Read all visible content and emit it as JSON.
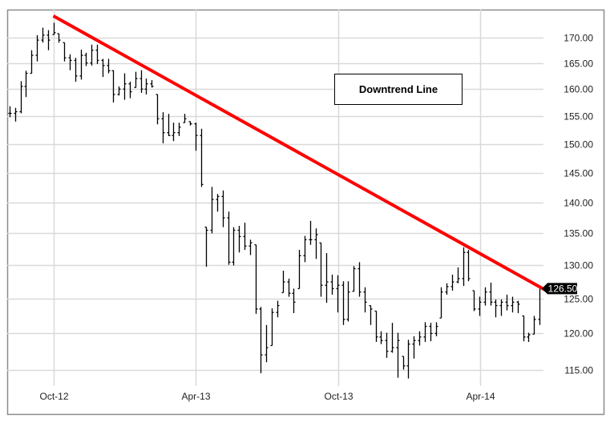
{
  "chart_data": {
    "type": "ohlc-bar",
    "title": "",
    "xlabel": "",
    "ylabel": "",
    "y_scale": "log",
    "ylim": [
      112.8,
      175.7
    ],
    "xlim": [
      "2012-08-06",
      "2014-06-16"
    ],
    "grid": true,
    "y_ticks": [
      "115.00",
      "120.00",
      "125.00",
      "130.00",
      "135.00",
      "140.00",
      "145.00",
      "150.00",
      "155.00",
      "160.00",
      "165.00",
      "170.00"
    ],
    "x_ticks": [
      {
        "label": "Oct-12",
        "date": "2012-10-01"
      },
      {
        "label": "Apr-13",
        "date": "2013-04-01"
      },
      {
        "label": "Oct-13",
        "date": "2013-10-01"
      },
      {
        "label": "Apr-14",
        "date": "2014-04-01"
      }
    ],
    "bar_fields": [
      "date",
      "high",
      "low",
      "close"
    ],
    "bars": [
      [
        "2012-08-06",
        156.8,
        154.8,
        155.5
      ],
      [
        "2012-08-13",
        156.5,
        154.0,
        155.8
      ],
      [
        "2012-08-20",
        161.5,
        155.5,
        160.5
      ],
      [
        "2012-08-27",
        163.5,
        158.5,
        163.0
      ],
      [
        "2012-09-03",
        167.5,
        163.0,
        166.5
      ],
      [
        "2012-09-10",
        170.5,
        165.3,
        169.5
      ],
      [
        "2012-09-17",
        172.0,
        169.0,
        170.5
      ],
      [
        "2012-09-24",
        171.5,
        167.5,
        169.5
      ],
      [
        "2012-10-01",
        173.0,
        170.6,
        171.0
      ],
      [
        "2012-10-08",
        170.8,
        169.0,
        169.5
      ],
      [
        "2012-10-15",
        169.0,
        165.3,
        166.0
      ],
      [
        "2012-10-22",
        166.7,
        163.6,
        165.5
      ],
      [
        "2012-10-29",
        166.0,
        161.4,
        162.5
      ],
      [
        "2012-11-05",
        167.6,
        161.8,
        166.5
      ],
      [
        "2012-11-12",
        167.0,
        164.4,
        165.0
      ],
      [
        "2012-11-19",
        168.6,
        164.5,
        167.5
      ],
      [
        "2012-11-26",
        168.6,
        164.8,
        165.5
      ],
      [
        "2012-12-03",
        165.8,
        162.3,
        164.5
      ],
      [
        "2012-12-10",
        165.8,
        163.0,
        163.5
      ],
      [
        "2012-12-17",
        163.6,
        157.5,
        159.0
      ],
      [
        "2012-12-24",
        160.5,
        158.8,
        160.0
      ],
      [
        "2012-12-31",
        163.0,
        158.0,
        161.0
      ],
      [
        "2013-01-07",
        161.4,
        158.3,
        159.5
      ],
      [
        "2013-01-14",
        163.3,
        160.3,
        162.0
      ],
      [
        "2013-01-21",
        163.6,
        159.3,
        160.0
      ],
      [
        "2013-01-28",
        162.0,
        159.0,
        161.0
      ],
      [
        "2013-02-04",
        161.7,
        160.3,
        160.5
      ],
      [
        "2013-02-11",
        159.0,
        153.5,
        154.5
      ],
      [
        "2013-02-18",
        155.7,
        150.1,
        152.0
      ],
      [
        "2013-02-25",
        155.4,
        151.4,
        151.5
      ],
      [
        "2013-03-04",
        153.8,
        150.5,
        152.0
      ],
      [
        "2013-03-11",
        153.8,
        151.4,
        153.0
      ],
      [
        "2013-03-18",
        155.4,
        153.8,
        154.5
      ],
      [
        "2013-03-25",
        154.0,
        153.3,
        153.6
      ],
      [
        "2013-04-01",
        153.8,
        148.8,
        151.5
      ],
      [
        "2013-04-08",
        152.7,
        142.6,
        143.0
      ],
      [
        "2013-04-15",
        136.0,
        129.8,
        135.5
      ],
      [
        "2013-04-22",
        142.6,
        135.0,
        140.5
      ],
      [
        "2013-04-29",
        141.4,
        138.5,
        141.0
      ],
      [
        "2013-05-06",
        142.0,
        136.0,
        137.5
      ],
      [
        "2013-05-13",
        138.5,
        130.1,
        130.5
      ],
      [
        "2013-05-20",
        136.0,
        130.0,
        135.5
      ],
      [
        "2013-05-27",
        136.2,
        132.0,
        134.5
      ],
      [
        "2013-06-03",
        136.7,
        132.4,
        133.0
      ],
      [
        "2013-06-10",
        134.0,
        131.6,
        133.5
      ],
      [
        "2013-06-17",
        133.2,
        122.8,
        123.5
      ],
      [
        "2013-06-24",
        123.8,
        114.5,
        117.0
      ],
      [
        "2013-07-01",
        121.2,
        116.0,
        118.0
      ],
      [
        "2013-07-08",
        123.6,
        118.3,
        123.0
      ],
      [
        "2013-07-15",
        124.7,
        122.3,
        124.0
      ],
      [
        "2013-07-22",
        129.2,
        125.9,
        127.5
      ],
      [
        "2013-07-29",
        128.0,
        125.3,
        125.8
      ],
      [
        "2013-08-05",
        126.5,
        122.9,
        124.5
      ],
      [
        "2013-08-12",
        132.4,
        126.5,
        131.5
      ],
      [
        "2013-08-19",
        134.6,
        130.5,
        134.0
      ],
      [
        "2013-08-26",
        137.0,
        133.2,
        134.0
      ],
      [
        "2013-09-02",
        135.8,
        131.0,
        134.8
      ],
      [
        "2013-09-09",
        133.5,
        125.3,
        127.0
      ],
      [
        "2013-09-16",
        131.9,
        124.4,
        127.5
      ],
      [
        "2013-09-23",
        128.6,
        125.6,
        126.5
      ],
      [
        "2013-09-30",
        128.5,
        123.0,
        127.0
      ],
      [
        "2013-10-07",
        127.6,
        121.2,
        122.0
      ],
      [
        "2013-10-14",
        127.6,
        121.7,
        126.0
      ],
      [
        "2013-10-21",
        129.9,
        126.1,
        129.5
      ],
      [
        "2013-10-28",
        130.5,
        125.3,
        126.0
      ],
      [
        "2013-11-04",
        126.7,
        123.0,
        124.5
      ],
      [
        "2013-11-11",
        124.0,
        121.2,
        123.5
      ],
      [
        "2013-11-18",
        123.2,
        118.8,
        119.5
      ],
      [
        "2013-11-25",
        120.3,
        118.5,
        119.0
      ],
      [
        "2013-12-02",
        120.1,
        116.6,
        117.5
      ],
      [
        "2013-12-09",
        121.5,
        117.3,
        118.0
      ],
      [
        "2013-12-16",
        120.1,
        113.9,
        119.0
      ],
      [
        "2013-12-23",
        116.8,
        115.0,
        115.5
      ],
      [
        "2013-12-30",
        119.1,
        113.8,
        118.5
      ],
      [
        "2014-01-06",
        119.6,
        116.5,
        119.0
      ],
      [
        "2014-01-13",
        120.3,
        118.3,
        119.5
      ],
      [
        "2014-01-20",
        121.6,
        118.8,
        121.0
      ],
      [
        "2014-01-27",
        121.5,
        118.9,
        120.0
      ],
      [
        "2014-02-03",
        121.6,
        119.6,
        121.0
      ],
      [
        "2014-02-10",
        126.7,
        122.2,
        126.0
      ],
      [
        "2014-02-17",
        127.3,
        125.6,
        126.8
      ],
      [
        "2014-02-24",
        128.6,
        126.2,
        127.5
      ],
      [
        "2014-03-03",
        129.7,
        127.3,
        128.0
      ],
      [
        "2014-03-10",
        132.8,
        126.9,
        132.0
      ],
      [
        "2014-03-17",
        132.4,
        127.6,
        128.0
      ],
      [
        "2014-03-24",
        126.2,
        123.2,
        123.5
      ],
      [
        "2014-03-31",
        125.3,
        122.5,
        124.5
      ],
      [
        "2014-04-07",
        126.7,
        124.0,
        126.0
      ],
      [
        "2014-04-14",
        127.4,
        124.0,
        124.5
      ],
      [
        "2014-04-21",
        124.9,
        122.3,
        124.0
      ],
      [
        "2014-04-28",
        124.9,
        122.5,
        124.5
      ],
      [
        "2014-05-05",
        125.6,
        123.3,
        124.0
      ],
      [
        "2014-05-12",
        125.3,
        123.0,
        124.5
      ],
      [
        "2014-05-19",
        124.7,
        122.9,
        124.2
      ],
      [
        "2014-05-26",
        122.5,
        118.9,
        119.5
      ],
      [
        "2014-06-02",
        120.1,
        118.8,
        119.8
      ],
      [
        "2014-06-09",
        122.5,
        119.9,
        122.0
      ],
      [
        "2014-06-16",
        126.5,
        121.2,
        126.5
      ]
    ],
    "trendline": {
      "start": {
        "date": "2012-10-01",
        "price": 174.4
      },
      "end": {
        "date": "2014-06-25",
        "price": 126.2
      },
      "color": "#ff0000"
    },
    "annotation": "Downtrend Line",
    "last_price_label": "126.50",
    "colors": {
      "bars": "#000000",
      "grid": "#d9d9d9",
      "trendline": "#ff0000",
      "last_price_bg": "#000000",
      "last_price_text": "#ffffff"
    }
  }
}
